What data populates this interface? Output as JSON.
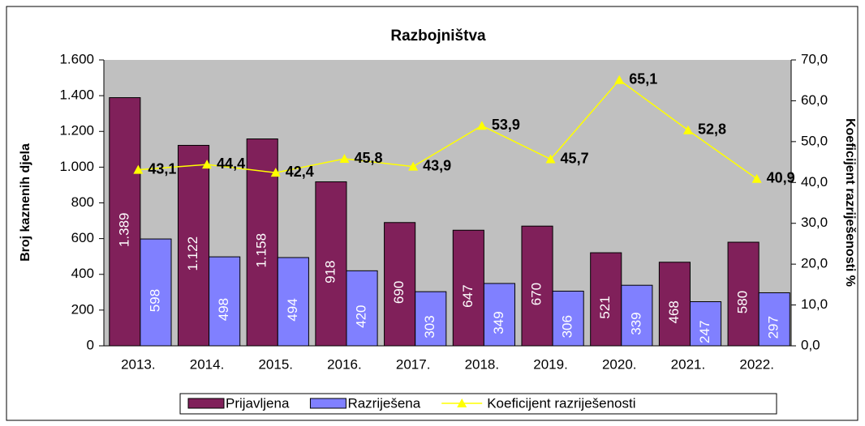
{
  "chart_data": {
    "type": "bar-line",
    "title": "Razbojništva",
    "ylabel": "Broj kaznenih djela",
    "y2label": "Koeficijent razriješenosti %",
    "categories": [
      "2013.",
      "2014.",
      "2015.",
      "2016.",
      "2017.",
      "2018.",
      "2019.",
      "2020.",
      "2021.",
      "2022."
    ],
    "series": [
      {
        "name": "Prijavljena",
        "color": "#80205a",
        "type": "bar",
        "values": [
          1389,
          1122,
          1158,
          918,
          690,
          647,
          670,
          521,
          468,
          580
        ],
        "value_labels": [
          "1.389",
          "1.122",
          "1.158",
          "918",
          "690",
          "647",
          "670",
          "521",
          "468",
          "580"
        ]
      },
      {
        "name": "Razriješena",
        "color": "#8080ff",
        "type": "bar",
        "values": [
          598,
          498,
          494,
          420,
          303,
          349,
          306,
          339,
          247,
          297
        ],
        "value_labels": [
          "598",
          "498",
          "494",
          "420",
          "303",
          "349",
          "306",
          "339",
          "247",
          "297"
        ]
      },
      {
        "name": "Koeficijent razriješenosti",
        "color": "#ffff00",
        "type": "line",
        "axis": "y2",
        "values": [
          43.1,
          44.4,
          42.4,
          45.8,
          43.9,
          53.9,
          45.7,
          65.1,
          52.8,
          40.9
        ],
        "value_labels": [
          "43,1",
          "44,4",
          "42,4",
          "45,8",
          "43,9",
          "53,9",
          "45,7",
          "65,1",
          "52,8",
          "40,9"
        ]
      }
    ],
    "ylim": [
      0,
      1600
    ],
    "yticks": [
      0,
      200,
      400,
      600,
      800,
      {
        "value": 1000,
        "label": "1.000"
      },
      {
        "value": 1200,
        "label": "1.200"
      },
      {
        "value": 1400,
        "label": "1.400"
      },
      {
        "value": 1600,
        "label": "1.600"
      }
    ],
    "y2lim": [
      0,
      70
    ],
    "y2ticks": [
      {
        "value": 0,
        "label": "0,0"
      },
      {
        "value": 10,
        "label": "10,0"
      },
      {
        "value": 20,
        "label": "20,0"
      },
      {
        "value": 30,
        "label": "30,0"
      },
      {
        "value": 40,
        "label": "40,0"
      },
      {
        "value": 50,
        "label": "50,0"
      },
      {
        "value": 60,
        "label": "60,0"
      },
      {
        "value": 70,
        "label": "70,0"
      }
    ],
    "legend": "bottom"
  }
}
